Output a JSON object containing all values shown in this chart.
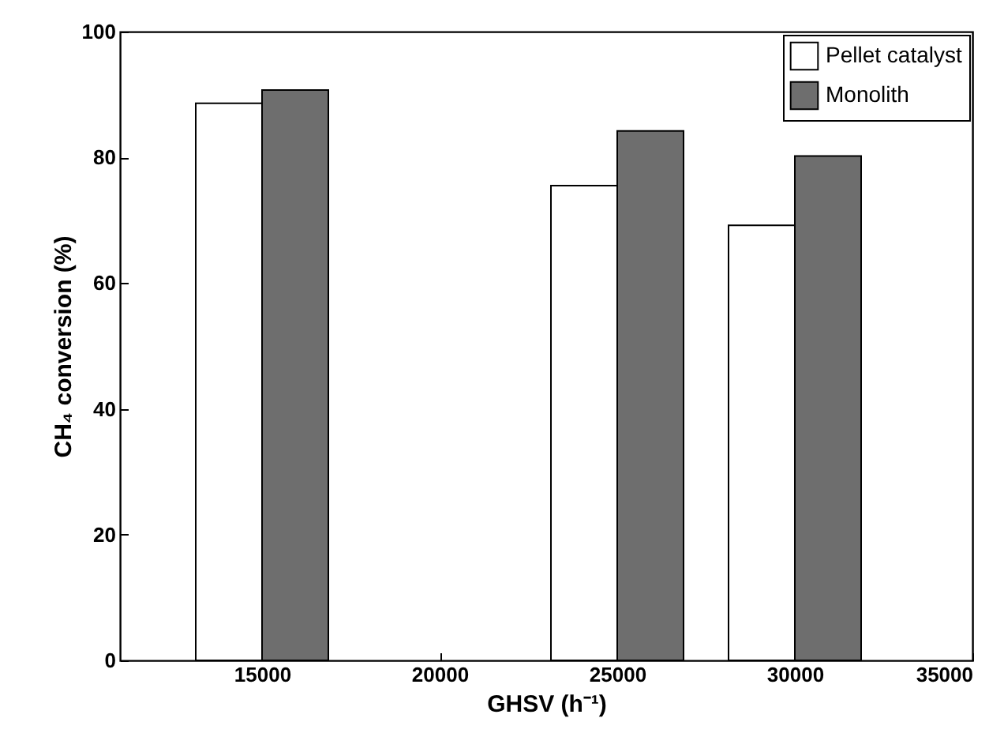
{
  "chart_data": {
    "type": "bar",
    "xlabel": "GHSV (h⁻¹)",
    "ylabel": "CH₄ conversion (%)",
    "x": [
      15000,
      25000,
      30000
    ],
    "series": [
      {
        "name": "Pellet catalyst",
        "color": "#ffffff",
        "values": [
          88.6,
          75.5,
          69.2
        ]
      },
      {
        "name": "Monolith",
        "color": "#6e6e6e",
        "values": [
          90.7,
          84.2,
          80.2
        ]
      }
    ],
    "xlim": [
      11000,
      35000
    ],
    "xticks": [
      15000,
      20000,
      25000,
      30000,
      35000
    ],
    "ylim": [
      0,
      100
    ],
    "yticks": [
      0,
      20,
      40,
      60,
      80,
      100
    ],
    "grid": false,
    "legend": "top right"
  }
}
